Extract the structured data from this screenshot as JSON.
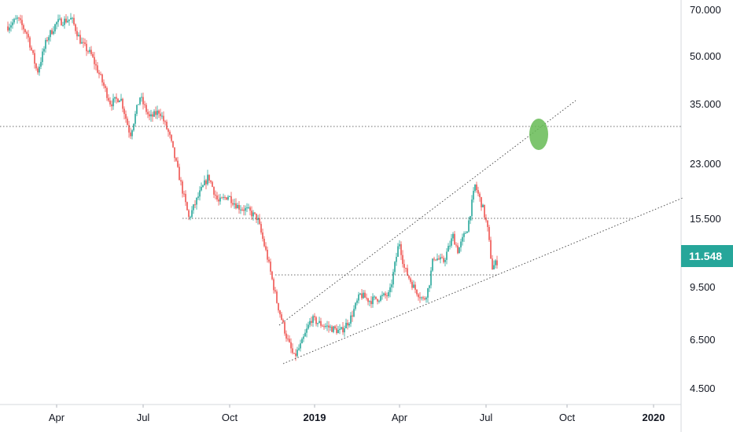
{
  "chart_data": {
    "type": "candlestick",
    "y_scale": "log",
    "ylim": [
      4.0,
      82.0
    ],
    "y_ticks": [
      "70.000",
      "50.000",
      "35.000",
      "23.000",
      "15.500",
      "9.500",
      "6.500",
      "4.500"
    ],
    "x_ticks": [
      {
        "label": "Apr",
        "bold": false
      },
      {
        "label": "Jul",
        "bold": false
      },
      {
        "label": "Oct",
        "bold": false
      },
      {
        "label": "2019",
        "bold": true
      },
      {
        "label": "Apr",
        "bold": false
      },
      {
        "label": "Jul",
        "bold": false
      },
      {
        "label": "Oct",
        "bold": false
      },
      {
        "label": "2020",
        "bold": true
      }
    ],
    "last_price": {
      "label": "11.548",
      "value": 11.548
    },
    "price_path": [
      {
        "t": 0.0,
        "p": 68
      },
      {
        "t": 0.02,
        "p": 72
      },
      {
        "t": 0.04,
        "p": 64
      },
      {
        "t": 0.06,
        "p": 48
      },
      {
        "t": 0.08,
        "p": 62
      },
      {
        "t": 0.1,
        "p": 70
      },
      {
        "t": 0.13,
        "p": 72
      },
      {
        "t": 0.15,
        "p": 60
      },
      {
        "t": 0.17,
        "p": 55
      },
      {
        "t": 0.19,
        "p": 46
      },
      {
        "t": 0.21,
        "p": 38
      },
      {
        "t": 0.23,
        "p": 40
      },
      {
        "t": 0.25,
        "p": 30
      },
      {
        "t": 0.27,
        "p": 40
      },
      {
        "t": 0.29,
        "p": 34
      },
      {
        "t": 0.31,
        "p": 36
      },
      {
        "t": 0.33,
        "p": 30
      },
      {
        "t": 0.35,
        "p": 22
      },
      {
        "t": 0.37,
        "p": 16
      },
      {
        "t": 0.39,
        "p": 19
      },
      {
        "t": 0.41,
        "p": 22
      },
      {
        "t": 0.43,
        "p": 18
      },
      {
        "t": 0.45,
        "p": 19
      },
      {
        "t": 0.47,
        "p": 17.5
      },
      {
        "t": 0.49,
        "p": 17
      },
      {
        "t": 0.51,
        "p": 16
      },
      {
        "t": 0.53,
        "p": 12
      },
      {
        "t": 0.55,
        "p": 8.5
      },
      {
        "t": 0.57,
        "p": 6.5
      },
      {
        "t": 0.585,
        "p": 5.6
      },
      {
        "t": 0.6,
        "p": 6.2
      },
      {
        "t": 0.62,
        "p": 7.5
      },
      {
        "t": 0.64,
        "p": 7.2
      },
      {
        "t": 0.66,
        "p": 7.0
      },
      {
        "t": 0.68,
        "p": 6.8
      },
      {
        "t": 0.7,
        "p": 7.5
      },
      {
        "t": 0.72,
        "p": 9.0
      },
      {
        "t": 0.74,
        "p": 8.6
      },
      {
        "t": 0.76,
        "p": 8.8
      },
      {
        "t": 0.78,
        "p": 9.0
      },
      {
        "t": 0.8,
        "p": 13.5
      },
      {
        "t": 0.81,
        "p": 11.0
      },
      {
        "t": 0.83,
        "p": 9.5
      },
      {
        "t": 0.85,
        "p": 8.6
      },
      {
        "t": 0.86,
        "p": 9.5
      },
      {
        "t": 0.87,
        "p": 12.0
      },
      {
        "t": 0.89,
        "p": 11.5
      },
      {
        "t": 0.91,
        "p": 14.0
      },
      {
        "t": 0.92,
        "p": 12.5
      },
      {
        "t": 0.94,
        "p": 15.0
      },
      {
        "t": 0.955,
        "p": 20.5
      },
      {
        "t": 0.97,
        "p": 17.5
      },
      {
        "t": 0.98,
        "p": 15.0
      },
      {
        "t": 0.99,
        "p": 11.0
      },
      {
        "t": 1.0,
        "p": 11.548
      }
    ],
    "colors": {
      "up": "#26a69a",
      "down": "#ef5350",
      "trendline": "#3c3c3c",
      "highlight": "#66bb55",
      "last_price_badge": "#26a69a",
      "axis_text": "#131722",
      "grid_border": "#d6d9de"
    }
  }
}
